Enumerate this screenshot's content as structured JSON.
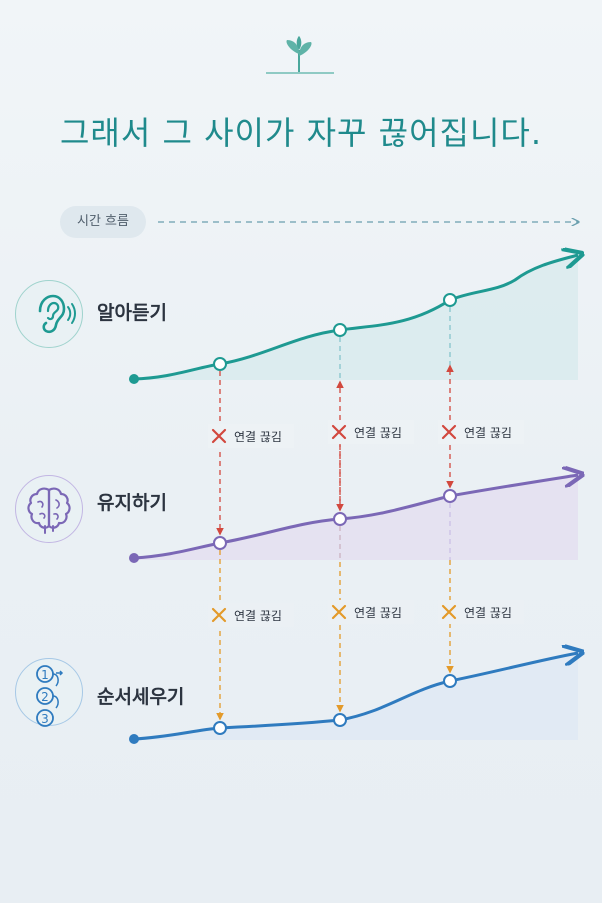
{
  "title": "그래서 그 사이가 자꾸 끊어집니다.",
  "time_label": "시간 흐름",
  "rows": [
    {
      "label": "알아듣기",
      "icon": "ear-icon",
      "color": "#1e9a92"
    },
    {
      "label": "유지하기",
      "icon": "brain-icon",
      "color": "#7b68b6"
    },
    {
      "label": "순서세우기",
      "icon": "numbered-steps-icon",
      "color": "#2f7bbf"
    }
  ],
  "numbered_steps_icon_digits": [
    "1",
    "2",
    "3"
  ],
  "break_label": "연결 끊김",
  "break_colors": {
    "top": "#d2483e",
    "bottom": "#e39a2a"
  },
  "decor": {
    "top_icon": "sprout-icon",
    "accent": "#5fb3a8"
  }
}
